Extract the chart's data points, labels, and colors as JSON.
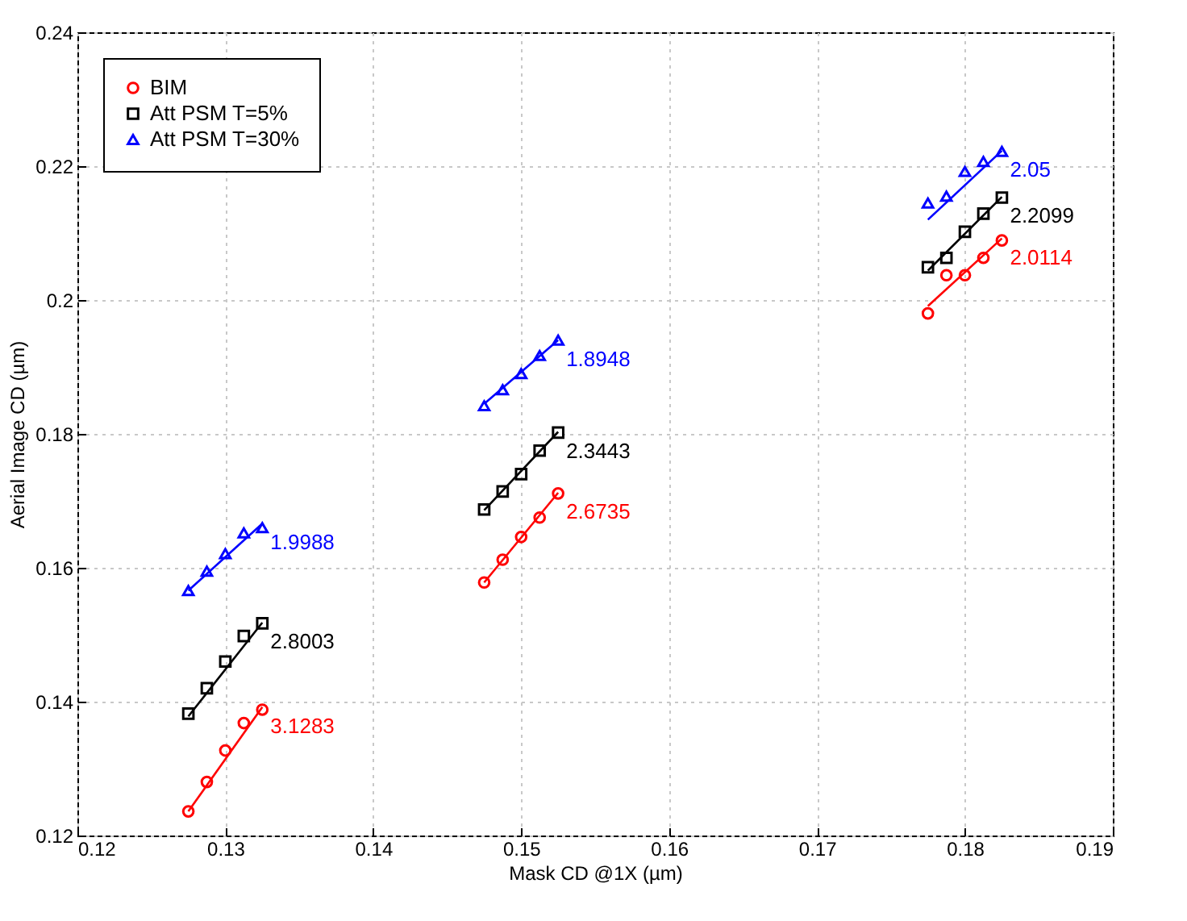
{
  "chart_data": {
    "type": "scatter",
    "xlabel": "Mask CD @1X (µm)",
    "ylabel": "Aerial Image CD (µm)",
    "xlim": [
      0.12,
      0.19
    ],
    "xticks": [
      0.12,
      0.13,
      0.14,
      0.15,
      0.16,
      0.17,
      0.18,
      0.19
    ],
    "ylim": [
      0.12,
      0.24
    ],
    "yticks": [
      0.12,
      0.14,
      0.16,
      0.18,
      0.2,
      0.22,
      0.24
    ],
    "grid": true,
    "legend": "top left",
    "series": [
      {
        "name": "BIM",
        "color": "#ff0000",
        "marker": "circle",
        "x": [
          0.1275,
          0.12875,
          0.13,
          0.13125,
          0.1325,
          0.1475,
          0.14875,
          0.15,
          0.15125,
          0.1525,
          0.1775,
          0.17875,
          0.18,
          0.18125,
          0.1825
        ],
        "values": [
          0.1236,
          0.128,
          0.1327,
          0.1368,
          0.1388,
          0.1578,
          0.1612,
          0.1646,
          0.1675,
          0.1711,
          0.198,
          0.2037,
          0.2037,
          0.2063,
          0.2089
        ]
      },
      {
        "name": "Att PSM T=5%",
        "color": "#000000",
        "marker": "square",
        "x": [
          0.1275,
          0.12875,
          0.13,
          0.13125,
          0.1325,
          0.1475,
          0.14875,
          0.15,
          0.15125,
          0.1525,
          0.1775,
          0.17875,
          0.18,
          0.18125,
          0.1825
        ],
        "values": [
          0.1382,
          0.142,
          0.146,
          0.1498,
          0.1517,
          0.1687,
          0.1714,
          0.174,
          0.1775,
          0.1802,
          0.2049,
          0.2063,
          0.2102,
          0.2129,
          0.2153
        ]
      },
      {
        "name": "Att PSM T=30%",
        "color": "#0000ff",
        "marker": "triangle",
        "x": [
          0.1275,
          0.12875,
          0.13,
          0.13125,
          0.1325,
          0.1475,
          0.14875,
          0.15,
          0.15125,
          0.1525,
          0.1775,
          0.17875,
          0.18,
          0.18125,
          0.1825
        ],
        "values": [
          0.1566,
          0.1595,
          0.1621,
          0.1652,
          0.166,
          0.1842,
          0.1866,
          0.189,
          0.1917,
          0.194,
          0.2145,
          0.2155,
          0.2192,
          0.2207,
          0.2222
        ]
      },
      {
        "type": "line",
        "name": "3.1283",
        "color": "#ff0000",
        "x": [
          0.1275,
          0.1325
        ],
        "values": [
          0.1236,
          0.1392
        ]
      },
      {
        "type": "line",
        "name": "2.6735",
        "color": "#ff0000",
        "x": [
          0.1475,
          0.1525
        ],
        "values": [
          0.1578,
          0.1712
        ]
      },
      {
        "type": "line",
        "name": "2.0114",
        "color": "#ff0000",
        "x": [
          0.1775,
          0.1825
        ],
        "values": [
          0.1991,
          0.2092
        ]
      },
      {
        "type": "line",
        "name": "2.8003",
        "color": "#000000",
        "x": [
          0.1275,
          0.1325
        ],
        "values": [
          0.1378,
          0.1518
        ]
      },
      {
        "type": "line",
        "name": "2.3443",
        "color": "#000000",
        "x": [
          0.1475,
          0.1525
        ],
        "values": [
          0.1686,
          0.1803
        ]
      },
      {
        "type": "line",
        "name": "2.2099",
        "color": "#000000",
        "x": [
          0.1775,
          0.1825
        ],
        "values": [
          0.2044,
          0.2154
        ]
      },
      {
        "type": "line",
        "name": "1.9988",
        "color": "#0000ff",
        "x": [
          0.1275,
          0.1325
        ],
        "values": [
          0.1566,
          0.1666
        ]
      },
      {
        "type": "line",
        "name": "1.8948",
        "color": "#0000ff",
        "x": [
          0.1475,
          0.1525
        ],
        "values": [
          0.1845,
          0.194
        ]
      },
      {
        "type": "line",
        "name": "2.05",
        "color": "#0000ff",
        "x": [
          0.1775,
          0.1825
        ],
        "values": [
          0.212,
          0.2223
        ]
      }
    ]
  }
}
